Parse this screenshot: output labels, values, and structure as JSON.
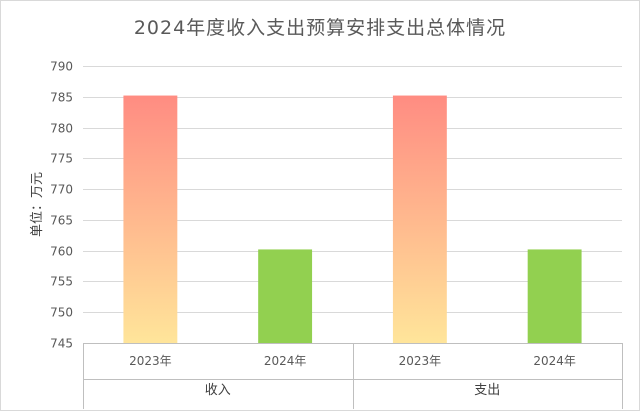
{
  "chart_data": {
    "type": "bar",
    "title": "2024年度收入支出预算安排支出总体情况",
    "ylabel": "单位：万元",
    "xlabel": "",
    "ylim": [
      745,
      790
    ],
    "ytick_step": 5,
    "grid": true,
    "legend": "none",
    "groups": [
      {
        "label": "收入",
        "bars": [
          {
            "category": "2023年",
            "value": 785.2,
            "color_top": "#ff8c82",
            "color_bottom": "#ffe59a"
          },
          {
            "category": "2024年",
            "value": 760.2,
            "color_top": "#92d050",
            "color_bottom": "#92d050"
          }
        ]
      },
      {
        "label": "支出",
        "bars": [
          {
            "category": "2023年",
            "value": 785.2,
            "color_top": "#ff8c82",
            "color_bottom": "#ffe59a"
          },
          {
            "category": "2024年",
            "value": 760.2,
            "color_top": "#92d050",
            "color_bottom": "#92d050"
          }
        ]
      }
    ]
  }
}
